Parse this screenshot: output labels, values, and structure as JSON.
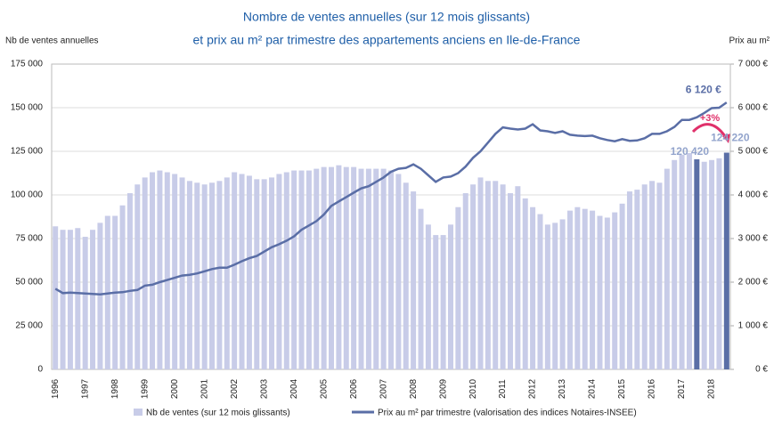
{
  "chart_data": {
    "type": "bar_line",
    "title_lines": [
      "Nombre de ventes annuelles (sur 12 mois glissants)",
      "et prix au m² par trimestre des appartements anciens en Ile-de-France"
    ],
    "y_label": "Nb de ventes annuelles",
    "y2_label": "Prix au m²",
    "categories": [
      "1996",
      null,
      null,
      null,
      "1997",
      null,
      null,
      null,
      "1998",
      null,
      null,
      null,
      "1999",
      null,
      null,
      null,
      "2000",
      null,
      null,
      null,
      "2001",
      null,
      null,
      null,
      "2002",
      null,
      null,
      null,
      "2003",
      null,
      null,
      null,
      "2004",
      null,
      null,
      null,
      "2005",
      null,
      null,
      null,
      "2006",
      null,
      null,
      null,
      "2007",
      null,
      null,
      null,
      "2008",
      null,
      null,
      null,
      "2009",
      null,
      null,
      null,
      "2010",
      null,
      null,
      null,
      "2011",
      null,
      null,
      null,
      "2012",
      null,
      null,
      null,
      "2013",
      null,
      null,
      null,
      "2014",
      null,
      null,
      null,
      "2015",
      null,
      null,
      null,
      "2016",
      null,
      null,
      null,
      "2017",
      null,
      null,
      null,
      "2018",
      null,
      null
    ],
    "series": [
      {
        "name": "Nb de ventes (sur 12 mois glissants)",
        "color": "#c8cce8",
        "highlight_color": "#5a6ea6",
        "label_color": "#93a4cc",
        "values": [
          82000,
          80000,
          80000,
          81000,
          76000,
          80000,
          84000,
          88000,
          88000,
          94000,
          101000,
          106000,
          110000,
          113000,
          114000,
          113000,
          112000,
          110000,
          108000,
          107000,
          106000,
          107000,
          108000,
          110000,
          113000,
          112000,
          111000,
          109000,
          109000,
          110000,
          112000,
          113000,
          114000,
          114000,
          114000,
          115000,
          116000,
          116000,
          117000,
          116000,
          116000,
          115000,
          115000,
          115000,
          115000,
          114000,
          112000,
          107000,
          102000,
          92000,
          83000,
          77000,
          77000,
          83000,
          93000,
          101000,
          106000,
          110000,
          108000,
          108000,
          106000,
          101000,
          105000,
          98000,
          93000,
          89000,
          83000,
          84000,
          86000,
          91000,
          93000,
          92000,
          91000,
          88000,
          87000,
          90000,
          95000,
          102000,
          103000,
          106000,
          108000,
          107000,
          115000,
          120000,
          123000,
          124000,
          120420,
          119000,
          120000,
          121000,
          124220
        ],
        "value_labels": [
          null,
          null,
          null,
          null,
          null,
          null,
          null,
          null,
          null,
          null,
          null,
          null,
          null,
          null,
          null,
          null,
          null,
          null,
          null,
          null,
          null,
          null,
          null,
          null,
          null,
          null,
          null,
          null,
          null,
          null,
          null,
          null,
          null,
          null,
          null,
          null,
          null,
          null,
          null,
          null,
          null,
          null,
          null,
          null,
          null,
          null,
          null,
          null,
          null,
          null,
          null,
          null,
          null,
          null,
          null,
          null,
          null,
          null,
          null,
          null,
          null,
          null,
          null,
          null,
          null,
          null,
          null,
          null,
          null,
          null,
          null,
          null,
          null,
          null,
          null,
          null,
          null,
          null,
          null,
          null,
          null,
          null,
          null,
          null,
          null,
          null,
          "120 420",
          null,
          null,
          null,
          "124 220"
        ]
      },
      {
        "name": "Prix au m² par trimestre (valorisation des indices Notaires-INSEE)",
        "color": "#5a6ea6",
        "axis": "y2",
        "values": [
          1850,
          1750,
          1760,
          1750,
          1740,
          1730,
          1720,
          1740,
          1760,
          1770,
          1800,
          1820,
          1920,
          1940,
          2000,
          2050,
          2100,
          2150,
          2170,
          2200,
          2250,
          2300,
          2330,
          2330,
          2400,
          2480,
          2550,
          2600,
          2700,
          2800,
          2870,
          2950,
          3050,
          3200,
          3300,
          3400,
          3550,
          3750,
          3850,
          3950,
          4050,
          4150,
          4200,
          4300,
          4400,
          4530,
          4600,
          4620,
          4700,
          4600,
          4450,
          4300,
          4400,
          4420,
          4500,
          4650,
          4850,
          5000,
          5200,
          5400,
          5550,
          5520,
          5500,
          5520,
          5620,
          5480,
          5460,
          5420,
          5460,
          5380,
          5360,
          5350,
          5360,
          5300,
          5260,
          5230,
          5280,
          5240,
          5250,
          5300,
          5400,
          5400,
          5460,
          5560,
          5720,
          5720,
          5780,
          5880,
          5990,
          6000,
          6120
        ],
        "value_labels": [
          null,
          null,
          null,
          null,
          null,
          null,
          null,
          null,
          null,
          null,
          null,
          null,
          null,
          null,
          null,
          null,
          null,
          null,
          null,
          null,
          null,
          null,
          null,
          null,
          null,
          null,
          null,
          null,
          null,
          null,
          null,
          null,
          null,
          null,
          null,
          null,
          null,
          null,
          null,
          null,
          null,
          null,
          null,
          null,
          null,
          null,
          null,
          null,
          null,
          null,
          null,
          null,
          null,
          null,
          null,
          null,
          null,
          null,
          null,
          null,
          null,
          null,
          null,
          null,
          null,
          null,
          null,
          null,
          null,
          null,
          null,
          null,
          null,
          null,
          null,
          null,
          null,
          null,
          null,
          null,
          null,
          null,
          null,
          null,
          null,
          null,
          null,
          null,
          null,
          null,
          "6 120 €"
        ]
      }
    ],
    "ylim": [
      0,
      175000
    ],
    "yticks": [
      0,
      {
        "value": 25000,
        "label": "25 000"
      },
      {
        "value": 50000,
        "label": "50 000"
      },
      {
        "value": 75000,
        "label": "75 000"
      },
      {
        "value": 100000,
        "label": "100 000"
      },
      {
        "value": 125000,
        "label": "125 000"
      },
      {
        "value": 150000,
        "label": "150 000"
      },
      {
        "value": 175000,
        "label": "175 000"
      }
    ],
    "y2lim": [
      0,
      7000
    ],
    "y2ticks": [
      {
        "value": 0,
        "label": "0 €"
      },
      {
        "value": 1000,
        "label": "1 000 €"
      },
      {
        "value": 2000,
        "label": "2 000 €"
      },
      {
        "value": 3000,
        "label": "3 000 €"
      },
      {
        "value": 4000,
        "label": "4 000 €"
      },
      {
        "value": 5000,
        "label": "5 000 €"
      },
      {
        "value": 6000,
        "label": "6 000 €"
      },
      {
        "value": 7000,
        "label": "7 000 €"
      }
    ],
    "annotations": [
      {
        "text": "+3%",
        "color": "#e0306a"
      }
    ],
    "grid": true
  }
}
